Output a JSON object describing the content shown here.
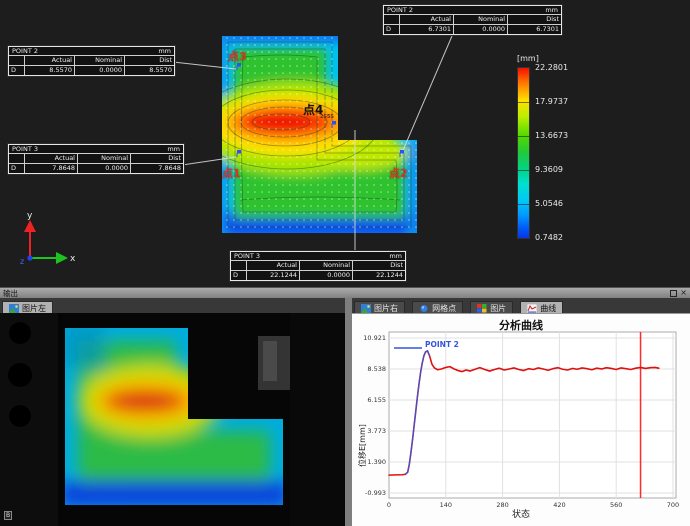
{
  "scene": {
    "tables": [
      {
        "name": "POINT 2",
        "unit": "mm",
        "cols": [
          "Actual",
          "Nominal",
          "Dist"
        ],
        "row": "D",
        "values": [
          "8.5570",
          "0.0000",
          "8.5570"
        ]
      },
      {
        "name": "POINT 2",
        "unit": "mm",
        "cols": [
          "Actual",
          "Nominal",
          "Dist"
        ],
        "row": "D",
        "values": [
          "6.7301",
          "0.0000",
          "6.7301"
        ]
      },
      {
        "name": "POINT 3",
        "unit": "mm",
        "cols": [
          "Actual",
          "Nominal",
          "Dist"
        ],
        "row": "D",
        "values": [
          "7.8648",
          "0.0000",
          "7.8648"
        ]
      },
      {
        "name": "POINT 3",
        "unit": "mm",
        "cols": [
          "Actual",
          "Nominal",
          "Dist"
        ],
        "row": "D",
        "values": [
          "22.1244",
          "0.0000",
          "22.1244"
        ]
      }
    ],
    "point_labels": [
      {
        "text": "点3"
      },
      {
        "text": "点4"
      },
      {
        "text": "点1"
      },
      {
        "text": "点2"
      }
    ],
    "marker_id": "2555",
    "triad": {
      "x": "x",
      "y": "y",
      "z": "z"
    },
    "colorbar": {
      "unit": "[mm]",
      "ticks": [
        "22.2801",
        "17.9737",
        "13.6673",
        "9.3609",
        "5.0546",
        "0.7482"
      ]
    }
  },
  "dock": {
    "title": "输出"
  },
  "left_panel": {
    "tab": "图片左",
    "corner_label": "B"
  },
  "right_panel": {
    "tabs": [
      {
        "label": "图片右"
      },
      {
        "label": "网格点"
      },
      {
        "label": "图片"
      },
      {
        "label": "曲线"
      }
    ],
    "active_tab": "曲线"
  },
  "chart_data": {
    "type": "line",
    "title": "分析曲线",
    "xlabel": "状态",
    "ylabel": "位移E[mm]",
    "xticks": [
      0,
      140,
      280,
      420,
      560,
      700
    ],
    "yticks": [
      "10.921",
      "8.538",
      "6.155",
      "3.773",
      "1.390",
      "-0.993"
    ],
    "xlim": [
      0,
      700
    ],
    "ylim": [
      -0.993,
      10.921
    ],
    "grid": true,
    "legend": {
      "label": "POINT 2",
      "color": "#3355dd"
    },
    "marker_x": 620,
    "series": [
      {
        "name": "POINT 2",
        "color": "#e01010",
        "x": [
          0,
          8,
          16,
          24,
          32,
          40,
          46,
          50,
          54,
          58,
          62,
          66,
          70,
          74,
          78,
          82,
          86,
          90,
          95,
          100,
          106,
          112,
          120,
          130,
          140,
          150,
          160,
          170,
          180,
          190,
          200,
          212,
          224,
          236,
          248,
          260,
          272,
          284,
          296,
          308,
          320,
          332,
          344,
          356,
          368,
          380,
          392,
          404,
          416,
          428,
          440,
          452,
          464,
          476,
          488,
          500,
          512,
          524,
          536,
          548,
          560,
          572,
          584,
          596,
          608,
          620,
          632,
          644,
          656,
          665
        ],
        "y": [
          0.38,
          0.39,
          0.4,
          0.4,
          0.41,
          0.44,
          0.6,
          1.2,
          2.1,
          3.1,
          4.2,
          5.3,
          6.4,
          7.4,
          8.3,
          9.0,
          9.55,
          9.85,
          9.93,
          9.55,
          8.9,
          8.62,
          8.48,
          8.55,
          8.66,
          8.72,
          8.55,
          8.42,
          8.34,
          8.46,
          8.38,
          8.52,
          8.64,
          8.5,
          8.38,
          8.5,
          8.6,
          8.46,
          8.54,
          8.62,
          8.5,
          8.42,
          8.56,
          8.5,
          8.62,
          8.54,
          8.44,
          8.56,
          8.64,
          8.52,
          8.46,
          8.58,
          8.52,
          8.62,
          8.56,
          8.48,
          8.6,
          8.54,
          8.64,
          8.58,
          8.5,
          8.62,
          8.56,
          8.5,
          8.6,
          8.66,
          8.58,
          8.64,
          8.66,
          8.6
        ]
      }
    ]
  }
}
